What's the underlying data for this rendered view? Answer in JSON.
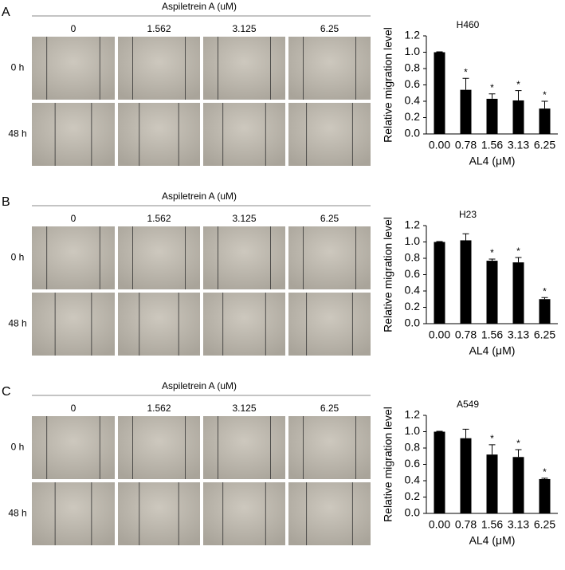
{
  "panels": [
    {
      "letter": "A",
      "treatment_label": "Aspiletrein A (uM)",
      "columns": [
        "0",
        "1.562",
        "3.125",
        "6.25"
      ],
      "rows": [
        "0 h",
        "48 h"
      ]
    },
    {
      "letter": "B",
      "treatment_label": "Aspiletrein A (uM)",
      "columns": [
        "0",
        "1.562",
        "3.125",
        "6.25"
      ],
      "rows": [
        "0 h",
        "48 h"
      ]
    },
    {
      "letter": "C",
      "treatment_label": "Aspiletrein A (uM)",
      "columns": [
        "0",
        "1.562",
        "3.125",
        "6.25"
      ],
      "rows": [
        "0 h",
        "48 h"
      ]
    }
  ],
  "chart_data": [
    {
      "type": "bar",
      "title": "H460",
      "x_label": "AL4 (μM)",
      "y_label": "Relative migration level",
      "color": "#000000",
      "categories": [
        "0.00",
        "0.78",
        "1.56",
        "3.13",
        "6.25"
      ],
      "values": [
        1.0,
        0.54,
        0.43,
        0.41,
        0.31
      ],
      "errors": [
        0.005,
        0.14,
        0.06,
        0.12,
        0.09
      ],
      "significance": [
        null,
        "*",
        "*",
        "*",
        "*"
      ],
      "ylim": [
        0,
        1.2
      ],
      "yticks": [
        {
          "value": 0,
          "label": "0.0"
        },
        0.2,
        0.4,
        0.6,
        0.8,
        {
          "value": 1,
          "label": "1.0"
        },
        1.2
      ]
    },
    {
      "type": "bar",
      "title": "H23",
      "x_label": "AL4 (μM)",
      "y_label": "Relative migration level",
      "color": "#000000",
      "categories": [
        "0.00",
        "0.78",
        "1.56",
        "3.13",
        "6.25"
      ],
      "values": [
        1.0,
        1.02,
        0.77,
        0.75,
        0.3
      ],
      "errors": [
        0.005,
        0.08,
        0.02,
        0.06,
        0.02
      ],
      "significance": [
        null,
        null,
        "*",
        "*",
        "*"
      ],
      "ylim": [
        0,
        1.2
      ],
      "yticks": [
        {
          "value": 0,
          "label": "0.0"
        },
        0.2,
        0.4,
        0.6,
        0.8,
        {
          "value": 1,
          "label": "1.0"
        },
        1.2
      ]
    },
    {
      "type": "bar",
      "title": "A549",
      "x_label": "AL4 (μM)",
      "y_label": "Relative migration level",
      "color": "#000000",
      "categories": [
        "0.00",
        "0.78",
        "1.56",
        "3.13",
        "6.25"
      ],
      "values": [
        1.0,
        0.92,
        0.72,
        0.69,
        0.42
      ],
      "errors": [
        0.005,
        0.11,
        0.12,
        0.09,
        0.01
      ],
      "significance": [
        null,
        null,
        "*",
        "*",
        "*"
      ],
      "ylim": [
        0,
        1.2
      ],
      "yticks": [
        {
          "value": 0,
          "label": "0.0"
        },
        0.2,
        0.4,
        0.6,
        0.8,
        {
          "value": 1,
          "label": "1.0"
        },
        1.2
      ]
    }
  ]
}
